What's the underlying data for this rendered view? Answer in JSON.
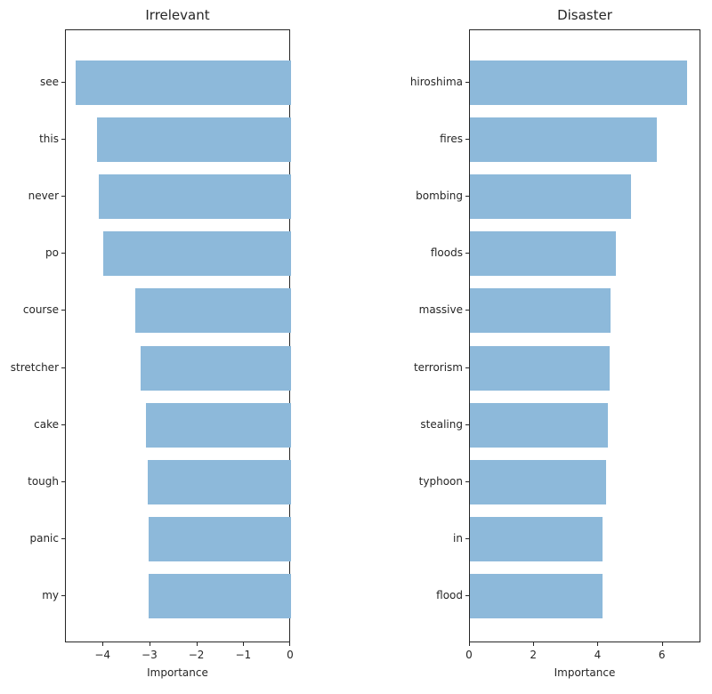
{
  "colors": {
    "bar_fill": "#8db9da",
    "spine": "#262626",
    "text": "#262626",
    "background": "#ffffff"
  },
  "chart_data": [
    {
      "type": "bar",
      "orientation": "horizontal",
      "title": "Irrelevant",
      "xlabel": "Importance",
      "categories": [
        "see",
        "this",
        "never",
        "po",
        "course",
        "stretcher",
        "cake",
        "tough",
        "panic",
        "my"
      ],
      "values": [
        -4.6,
        -4.14,
        -4.09,
        -4.0,
        -3.33,
        -3.21,
        -3.1,
        -3.05,
        -3.04,
        -3.03
      ],
      "xlim": [
        -4.8,
        0
      ],
      "xticks": [
        -4,
        -3,
        -2,
        -1,
        0
      ],
      "xtick_labels": [
        "−4",
        "−3",
        "−2",
        "−1",
        "0"
      ],
      "grid": false,
      "legend": "none"
    },
    {
      "type": "bar",
      "orientation": "horizontal",
      "title": "Disaster",
      "xlabel": "Importance",
      "categories": [
        "hiroshima",
        "fires",
        "bombing",
        "floods",
        "massive",
        "terrorism",
        "stealing",
        "typhoon",
        "in",
        "flood"
      ],
      "values": [
        6.76,
        5.81,
        5.0,
        4.53,
        4.38,
        4.34,
        4.28,
        4.23,
        4.12,
        4.12
      ],
      "xlim": [
        0,
        7.2
      ],
      "xticks": [
        0,
        2,
        4,
        6
      ],
      "xtick_labels": [
        "0",
        "2",
        "4",
        "6"
      ],
      "grid": false,
      "legend": "none"
    }
  ]
}
